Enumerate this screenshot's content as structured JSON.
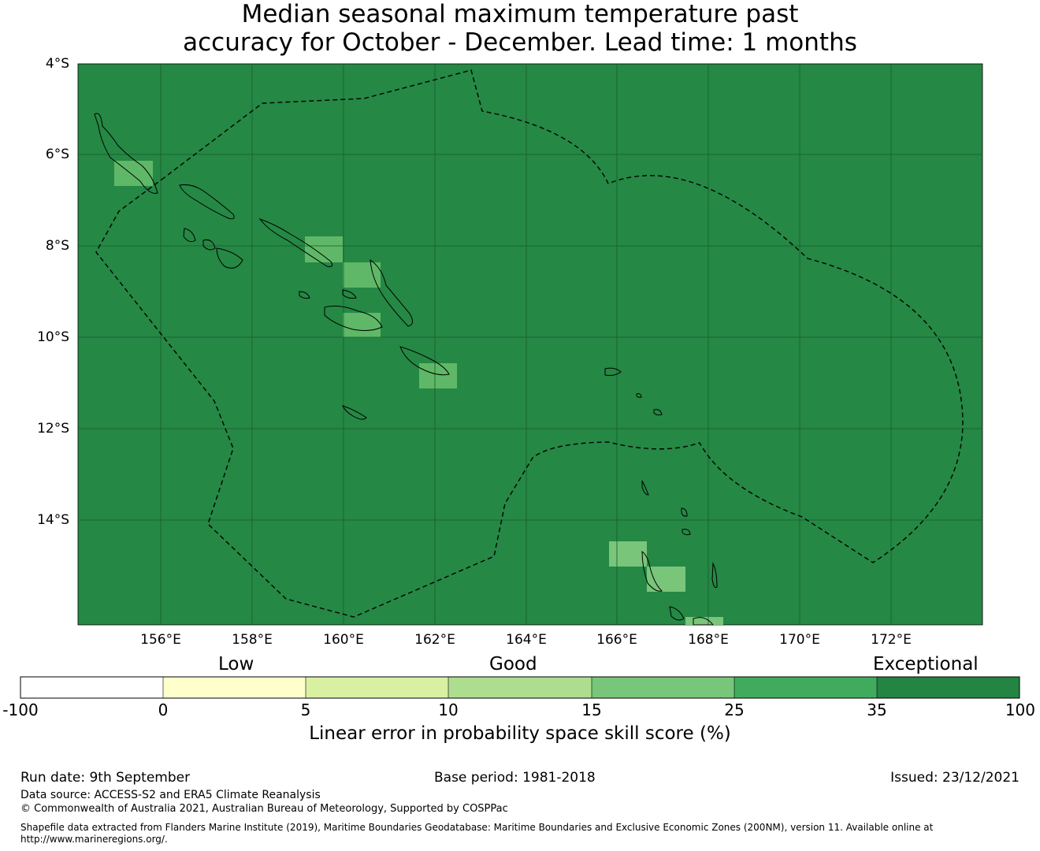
{
  "title_line1": "Median seasonal maximum temperature past",
  "title_line2": "accuracy for October - December. Lead time: 1 months",
  "map": {
    "lat_labels": [
      "4°S",
      "6°S",
      "8°S",
      "10°S",
      "12°S",
      "14°S"
    ],
    "lon_labels": [
      "156°E",
      "158°E",
      "160°E",
      "162°E",
      "164°E",
      "166°E",
      "168°E",
      "170°E",
      "172°E"
    ],
    "background_color": "#258845",
    "cell_colors": {
      "light": "#79c57a",
      "medium": "#5fb867"
    }
  },
  "colorbar": {
    "category_labels": {
      "low": "Low",
      "good": "Good",
      "exceptional": "Exceptional"
    },
    "tick_labels": [
      "-100",
      "0",
      "5",
      "10",
      "15",
      "25",
      "35",
      "100"
    ],
    "colors": [
      "#ffffff",
      "#ffffcc",
      "#d9f0a3",
      "#addd8e",
      "#78c679",
      "#41ab5d",
      "#238443"
    ],
    "title": "Linear error in probability space skill score (%)"
  },
  "footer": {
    "run_date": "Run date: 9th September",
    "base_period": "Base period: 1981-2018",
    "issued": "Issued: 23/12/2021",
    "data_source": "Data source: ACCESS-S2 and ERA5 Climate Reanalysis",
    "copyright": "© Commonwealth of Australia 2021, Australian Bureau of Meteorology, Supported by COSPPac",
    "shapefile_line1": "Shapefile data extracted from Flanders Marine Institute (2019), Maritime Boundaries Geodatabase: Maritime Boundaries and Exclusive Economic Zones (200NM), version 11. Available online at",
    "shapefile_line2": "http://www.marineregions.org/."
  }
}
